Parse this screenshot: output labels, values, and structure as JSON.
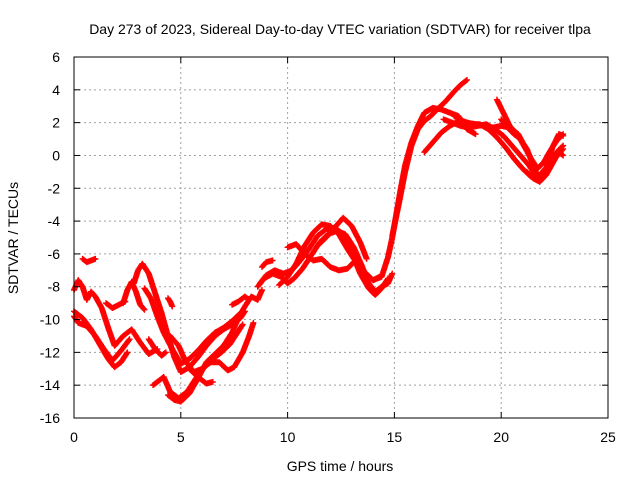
{
  "chart_data": {
    "type": "scatter",
    "title": "Day 273 of 2023, Sidereal Day-to-day VTEC variation (SDTVAR) for receiver tlpa",
    "xlabel": "GPS time / hours",
    "ylabel": "SDTVAR / TECUs",
    "xlim": [
      0,
      25
    ],
    "ylim": [
      -16,
      6
    ],
    "xticks": [
      0,
      5,
      10,
      15,
      20,
      25
    ],
    "yticks": [
      -16,
      -14,
      -12,
      -10,
      -8,
      -6,
      -4,
      -2,
      0,
      2,
      4,
      6
    ],
    "grid": true,
    "marker": "plus",
    "color": "#ff0000",
    "series": [
      {
        "values": [
          [
            0.0,
            -9.5
          ],
          [
            0.4,
            -9.9
          ],
          [
            0.8,
            -10.6
          ],
          [
            1.2,
            -11.5
          ],
          [
            1.6,
            -12.4
          ],
          [
            1.9,
            -12.9
          ],
          [
            2.2,
            -12.6
          ],
          [
            2.5,
            -12.0
          ]
        ]
      },
      {
        "values": [
          [
            0.0,
            -8.2
          ],
          [
            0.2,
            -7.6
          ],
          [
            0.4,
            -8.0
          ],
          [
            0.6,
            -8.8
          ],
          [
            0.8,
            -8.3
          ],
          [
            1.0,
            -8.6
          ],
          [
            1.3,
            -9.3
          ],
          [
            1.6,
            -10.5
          ],
          [
            1.9,
            -11.6
          ],
          [
            2.3,
            -11.0
          ],
          [
            2.7,
            -10.6
          ],
          [
            3.1,
            -11.4
          ],
          [
            3.5,
            -12.1
          ],
          [
            3.9,
            -11.8
          ]
        ]
      },
      {
        "values": [
          [
            0.0,
            -9.8
          ],
          [
            0.2,
            -10.2
          ],
          [
            0.6,
            -10.4
          ],
          [
            1.0,
            -11.0
          ],
          [
            1.4,
            -11.8
          ],
          [
            1.8,
            -12.5
          ],
          [
            2.2,
            -11.9
          ],
          [
            2.6,
            -11.2
          ]
        ]
      },
      {
        "values": [
          [
            0.4,
            -6.3
          ],
          [
            0.6,
            -6.5
          ],
          [
            0.8,
            -6.4
          ],
          [
            1.0,
            -6.3
          ]
        ]
      },
      {
        "values": [
          [
            1.5,
            -9.0
          ],
          [
            1.8,
            -9.3
          ],
          [
            2.1,
            -9.1
          ],
          [
            2.4,
            -8.9
          ]
        ]
      },
      {
        "values": [
          [
            2.3,
            -9.0
          ],
          [
            2.5,
            -8.2
          ],
          [
            2.7,
            -7.7
          ],
          [
            2.9,
            -8.3
          ],
          [
            3.1,
            -9.1
          ],
          [
            3.3,
            -9.4
          ]
        ]
      },
      {
        "values": [
          [
            2.8,
            -7.8
          ],
          [
            3.0,
            -7.0
          ],
          [
            3.2,
            -6.6
          ],
          [
            3.5,
            -7.2
          ],
          [
            3.8,
            -8.4
          ],
          [
            4.1,
            -9.6
          ],
          [
            4.4,
            -11.0
          ],
          [
            4.7,
            -12.3
          ],
          [
            5.0,
            -13.2
          ],
          [
            5.4,
            -12.9
          ],
          [
            5.8,
            -12.3
          ],
          [
            6.2,
            -11.6
          ],
          [
            6.6,
            -11.0
          ],
          [
            7.0,
            -10.6
          ],
          [
            7.4,
            -10.3
          ],
          [
            7.8,
            -9.9
          ],
          [
            8.0,
            -9.5
          ]
        ]
      },
      {
        "values": [
          [
            3.3,
            -8.1
          ],
          [
            3.6,
            -8.7
          ],
          [
            3.9,
            -9.8
          ],
          [
            4.2,
            -10.8
          ],
          [
            4.6,
            -11.8
          ],
          [
            5.0,
            -12.7
          ],
          [
            5.4,
            -12.4
          ],
          [
            5.8,
            -11.9
          ],
          [
            6.2,
            -11.3
          ],
          [
            6.6,
            -10.8
          ],
          [
            7.0,
            -10.5
          ],
          [
            7.4,
            -10.1
          ],
          [
            7.8,
            -9.6
          ]
        ]
      },
      {
        "values": [
          [
            3.5,
            -11.2
          ],
          [
            3.8,
            -11.8
          ],
          [
            4.1,
            -12.2
          ],
          [
            4.3,
            -12.0
          ]
        ]
      },
      {
        "values": [
          [
            3.7,
            -14.0
          ],
          [
            4.0,
            -13.7
          ],
          [
            4.2,
            -13.5
          ],
          [
            4.5,
            -14.4
          ],
          [
            4.9,
            -14.8
          ],
          [
            5.3,
            -14.4
          ],
          [
            5.7,
            -13.6
          ],
          [
            6.1,
            -12.9
          ],
          [
            6.5,
            -12.4
          ],
          [
            6.9,
            -12.0
          ],
          [
            7.3,
            -11.5
          ],
          [
            7.7,
            -10.7
          ],
          [
            7.9,
            -10.3
          ]
        ]
      },
      {
        "values": [
          [
            4.4,
            -14.6
          ],
          [
            4.7,
            -14.9
          ],
          [
            5.0,
            -15.0
          ],
          [
            5.4,
            -14.5
          ],
          [
            5.8,
            -13.6
          ],
          [
            6.2,
            -12.6
          ],
          [
            6.6,
            -12.1
          ],
          [
            7.0,
            -11.6
          ],
          [
            7.4,
            -10.8
          ],
          [
            7.7,
            -9.9
          ],
          [
            8.0,
            -9.2
          ],
          [
            8.3,
            -8.6
          ],
          [
            8.6,
            -8.8
          ],
          [
            8.8,
            -8.2
          ]
        ]
      },
      {
        "values": [
          [
            4.4,
            -8.7
          ],
          [
            4.5,
            -8.9
          ],
          [
            4.6,
            -9.2
          ]
        ]
      },
      {
        "values": [
          [
            4.5,
            -11.0
          ],
          [
            4.7,
            -11.3
          ],
          [
            4.9,
            -11.6
          ],
          [
            5.2,
            -12.5
          ],
          [
            5.6,
            -13.2
          ],
          [
            6.0,
            -13.0
          ],
          [
            6.4,
            -12.6
          ],
          [
            6.8,
            -12.6
          ],
          [
            7.2,
            -13.1
          ],
          [
            7.5,
            -12.9
          ],
          [
            7.9,
            -12.0
          ],
          [
            8.2,
            -11.0
          ],
          [
            8.4,
            -10.2
          ]
        ]
      },
      {
        "values": [
          [
            5.4,
            -13.0
          ],
          [
            5.8,
            -13.5
          ],
          [
            6.2,
            -13.9
          ],
          [
            6.5,
            -13.8
          ]
        ]
      },
      {
        "values": [
          [
            7.4,
            -9.1
          ],
          [
            7.7,
            -8.9
          ],
          [
            8.0,
            -8.6
          ],
          [
            8.2,
            -8.8
          ]
        ]
      },
      {
        "values": [
          [
            8.6,
            -8.0
          ],
          [
            8.9,
            -7.5
          ],
          [
            9.3,
            -7.2
          ],
          [
            9.7,
            -7.4
          ],
          [
            10.0,
            -7.8
          ],
          [
            10.3,
            -7.5
          ],
          [
            10.7,
            -6.9
          ],
          [
            11.1,
            -6.1
          ],
          [
            11.5,
            -5.3
          ],
          [
            11.9,
            -4.8
          ],
          [
            12.3,
            -4.6
          ],
          [
            12.7,
            -4.8
          ],
          [
            13.1,
            -5.6
          ],
          [
            13.5,
            -6.8
          ],
          [
            13.8,
            -7.8
          ],
          [
            14.1,
            -8.3
          ],
          [
            14.4,
            -8.0
          ],
          [
            14.7,
            -7.8
          ],
          [
            14.9,
            -7.2
          ]
        ]
      },
      {
        "values": [
          [
            8.7,
            -7.8
          ],
          [
            9.0,
            -7.3
          ],
          [
            9.4,
            -7.0
          ],
          [
            9.8,
            -7.2
          ],
          [
            10.2,
            -7.0
          ],
          [
            10.6,
            -6.4
          ],
          [
            11.0,
            -5.7
          ],
          [
            11.4,
            -4.9
          ],
          [
            11.8,
            -4.5
          ],
          [
            12.2,
            -4.4
          ],
          [
            12.6,
            -4.8
          ],
          [
            13.0,
            -5.9
          ],
          [
            13.4,
            -7.2
          ],
          [
            13.8,
            -8.1
          ],
          [
            14.1,
            -8.5
          ],
          [
            14.4,
            -8.1
          ],
          [
            14.7,
            -7.5
          ]
        ]
      },
      {
        "values": [
          [
            8.8,
            -6.8
          ],
          [
            9.0,
            -6.5
          ],
          [
            9.3,
            -6.4
          ]
        ]
      },
      {
        "values": [
          [
            9.6,
            -7.9
          ],
          [
            10.0,
            -7.4
          ],
          [
            10.4,
            -6.6
          ],
          [
            10.8,
            -5.5
          ],
          [
            11.2,
            -4.7
          ],
          [
            11.6,
            -4.2
          ],
          [
            12.0,
            -4.3
          ],
          [
            12.4,
            -4.8
          ],
          [
            12.8,
            -5.7
          ],
          [
            13.2,
            -6.5
          ],
          [
            13.6,
            -7.1
          ],
          [
            14.0,
            -7.6
          ],
          [
            14.3,
            -7.4
          ]
        ]
      },
      {
        "values": [
          [
            10.0,
            -5.6
          ],
          [
            10.4,
            -5.4
          ],
          [
            10.8,
            -6.0
          ],
          [
            11.2,
            -6.4
          ],
          [
            11.6,
            -6.3
          ],
          [
            12.0,
            -6.8
          ],
          [
            12.4,
            -7.0
          ],
          [
            12.8,
            -6.9
          ],
          [
            13.1,
            -6.5
          ]
        ]
      },
      {
        "values": [
          [
            11.4,
            -5.5
          ],
          [
            11.8,
            -5.0
          ],
          [
            12.2,
            -4.4
          ],
          [
            12.6,
            -3.8
          ],
          [
            13.0,
            -4.3
          ],
          [
            13.4,
            -5.3
          ],
          [
            13.7,
            -6.3
          ]
        ]
      },
      {
        "values": [
          [
            14.0,
            -7.6
          ],
          [
            14.4,
            -7.4
          ],
          [
            14.7,
            -6.2
          ],
          [
            14.9,
            -5.0
          ],
          [
            15.1,
            -3.5
          ],
          [
            15.3,
            -2.0
          ],
          [
            15.5,
            -0.6
          ],
          [
            15.8,
            0.8
          ],
          [
            16.1,
            1.8
          ],
          [
            16.4,
            2.6
          ],
          [
            16.8,
            2.9
          ],
          [
            17.2,
            2.8
          ],
          [
            17.6,
            2.6
          ],
          [
            18.0,
            2.4
          ],
          [
            18.4,
            1.6
          ],
          [
            18.8,
            1.3
          ]
        ]
      },
      {
        "values": [
          [
            14.9,
            -4.9
          ],
          [
            15.2,
            -3.0
          ],
          [
            15.5,
            -1.0
          ],
          [
            15.8,
            0.6
          ],
          [
            16.1,
            1.6
          ],
          [
            16.4,
            2.1
          ],
          [
            16.7,
            2.4
          ],
          [
            17.0,
            2.8
          ],
          [
            17.4,
            3.3
          ],
          [
            17.8,
            3.9
          ],
          [
            18.1,
            4.3
          ],
          [
            18.4,
            4.6
          ]
        ]
      },
      {
        "values": [
          [
            16.4,
            0.2
          ],
          [
            16.8,
            0.8
          ],
          [
            17.2,
            1.4
          ],
          [
            17.6,
            1.8
          ],
          [
            18.0,
            2.1
          ],
          [
            18.4,
            2.0
          ],
          [
            18.8,
            1.9
          ],
          [
            19.2,
            1.8
          ],
          [
            19.6,
            1.7
          ],
          [
            20.0,
            1.8
          ],
          [
            20.4,
            1.7
          ],
          [
            20.8,
            1.3
          ],
          [
            21.0,
            0.8
          ]
        ]
      },
      {
        "values": [
          [
            17.3,
            2.2
          ],
          [
            17.7,
            2.0
          ],
          [
            18.1,
            1.8
          ],
          [
            18.5,
            1.7
          ],
          [
            18.9,
            1.8
          ],
          [
            19.3,
            1.9
          ],
          [
            19.7,
            1.6
          ],
          [
            20.1,
            1.2
          ],
          [
            20.5,
            0.6
          ],
          [
            20.9,
            0.0
          ],
          [
            21.3,
            -0.6
          ],
          [
            21.7,
            -1.4
          ],
          [
            22.1,
            -1.0
          ],
          [
            22.5,
            -0.2
          ],
          [
            22.9,
            0.4
          ]
        ]
      },
      {
        "values": [
          [
            17.8,
            2.4
          ],
          [
            18.2,
            2.1
          ],
          [
            18.6,
            1.9
          ],
          [
            19.0,
            1.9
          ],
          [
            19.4,
            1.6
          ],
          [
            19.8,
            1.1
          ],
          [
            20.2,
            0.5
          ],
          [
            20.6,
            -0.2
          ],
          [
            21.0,
            -0.8
          ],
          [
            21.4,
            -1.3
          ],
          [
            21.8,
            -1.2
          ],
          [
            22.2,
            -0.6
          ],
          [
            22.6,
            0.2
          ],
          [
            22.9,
            0.6
          ]
        ]
      },
      {
        "values": [
          [
            19.8,
            3.4
          ],
          [
            20.1,
            2.6
          ],
          [
            20.4,
            1.8
          ],
          [
            20.8,
            1.2
          ],
          [
            21.1,
            0.5
          ],
          [
            21.4,
            -0.2
          ],
          [
            21.7,
            -0.8
          ],
          [
            22.0,
            -0.4
          ],
          [
            22.3,
            0.3
          ],
          [
            22.6,
            0.9
          ],
          [
            22.9,
            1.3
          ]
        ]
      },
      {
        "values": [
          [
            20.0,
            2.2
          ],
          [
            20.3,
            1.7
          ],
          [
            20.6,
            1.3
          ],
          [
            20.9,
            1.0
          ],
          [
            21.2,
            0.4
          ],
          [
            21.5,
            -0.6
          ],
          [
            21.8,
            -1.6
          ],
          [
            22.1,
            -1.2
          ],
          [
            22.4,
            -0.5
          ],
          [
            22.7,
            0.2
          ],
          [
            22.9,
            0.0
          ]
        ]
      },
      {
        "values": [
          [
            21.2,
            -1.0
          ],
          [
            21.5,
            -1.4
          ],
          [
            21.8,
            -1.6
          ],
          [
            22.1,
            -0.8
          ],
          [
            22.4,
            0.5
          ],
          [
            22.7,
            1.3
          ],
          [
            22.9,
            1.2
          ]
        ]
      }
    ]
  }
}
